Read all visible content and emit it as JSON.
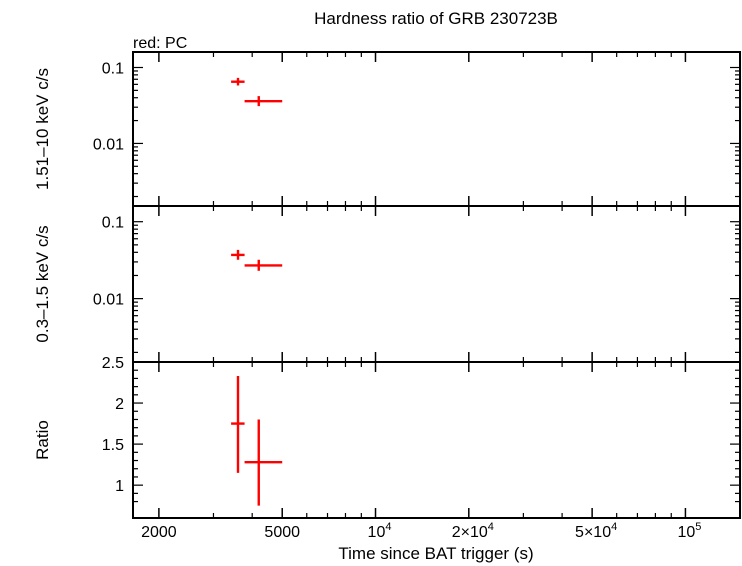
{
  "title": "Hardness ratio of GRB 230723B",
  "legend_note": "red: PC",
  "colors": {
    "series": "#ff0000",
    "axes": "#000000",
    "background": "#ffffff"
  },
  "x_tick_labels": [
    {
      "value": 2000,
      "text": "2000"
    },
    {
      "value": 5000,
      "text": "5000"
    },
    {
      "value": 10000,
      "base": "10",
      "exp": "4"
    },
    {
      "value": 20000,
      "base": "2×10",
      "exp": "4"
    },
    {
      "value": 50000,
      "base": "5×10",
      "exp": "4"
    },
    {
      "value": 100000,
      "base": "10",
      "exp": "5"
    }
  ],
  "chart_data": [
    {
      "type": "scatter",
      "panel": "top",
      "ylabel": "1.51–10 keV c/s",
      "xscale": "log",
      "yscale": "log",
      "xlim": [
        1650,
        150000
      ],
      "ylim": [
        0.0015,
        0.16
      ],
      "yticks": [
        {
          "value": 0.1,
          "text": "0.1"
        },
        {
          "value": 0.01,
          "text": "0.01"
        }
      ],
      "series": [
        {
          "name": "PC",
          "color": "#ff0000",
          "points": [
            {
              "x": 3600,
              "xerr": [
                3420,
                3780
              ],
              "y": 0.065,
              "yerr": [
                0.058,
                0.073
              ]
            },
            {
              "x": 4200,
              "xerr": [
                3780,
                5000
              ],
              "y": 0.036,
              "yerr": [
                0.031,
                0.042
              ]
            }
          ]
        }
      ]
    },
    {
      "type": "scatter",
      "panel": "middle",
      "ylabel": "0.3–1.5 keV c/s",
      "xscale": "log",
      "yscale": "log",
      "xlim": [
        1650,
        150000
      ],
      "ylim": [
        0.0015,
        0.16
      ],
      "yticks": [
        {
          "value": 0.1,
          "text": "0.1"
        },
        {
          "value": 0.01,
          "text": "0.01"
        }
      ],
      "series": [
        {
          "name": "PC",
          "color": "#ff0000",
          "points": [
            {
              "x": 3600,
              "xerr": [
                3420,
                3780
              ],
              "y": 0.037,
              "yerr": [
                0.032,
                0.043
              ]
            },
            {
              "x": 4200,
              "xerr": [
                3780,
                5000
              ],
              "y": 0.027,
              "yerr": [
                0.023,
                0.032
              ]
            }
          ]
        }
      ]
    },
    {
      "type": "scatter",
      "panel": "bottom",
      "ylabel": "Ratio",
      "xlabel": "Time since BAT trigger (s)",
      "xscale": "log",
      "yscale": "linear",
      "xlim": [
        1650,
        150000
      ],
      "ylim": [
        0.6,
        2.5
      ],
      "yticks": [
        {
          "value": 2.5,
          "text": "2.5"
        },
        {
          "value": 2,
          "text": "2"
        },
        {
          "value": 1.5,
          "text": "1.5"
        },
        {
          "value": 1,
          "text": "1"
        }
      ],
      "series": [
        {
          "name": "PC",
          "color": "#ff0000",
          "points": [
            {
              "x": 3600,
              "xerr": [
                3420,
                3780
              ],
              "y": 1.75,
              "yerr": [
                1.15,
                2.33
              ]
            },
            {
              "x": 4200,
              "xerr": [
                3780,
                5000
              ],
              "y": 1.28,
              "yerr": [
                0.75,
                1.8
              ]
            }
          ]
        }
      ]
    }
  ]
}
